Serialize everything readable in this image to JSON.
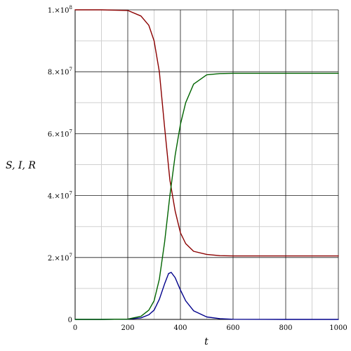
{
  "chart_data": {
    "type": "line",
    "title": "",
    "xlabel": "t",
    "ylabel": "S, I, R",
    "xlim": [
      0,
      1000
    ],
    "ylim": [
      0,
      100000000
    ],
    "x_ticks": [
      0,
      200,
      400,
      600,
      800,
      1000
    ],
    "y_ticks": [
      0,
      20000000,
      40000000,
      60000000,
      80000000,
      100000000
    ],
    "x_tick_labels": [
      "0",
      "200",
      "400",
      "600",
      "800",
      "1000"
    ],
    "y_tick_labels": [
      {
        "mantissa": "0",
        "exp": ""
      },
      {
        "mantissa": "2.×10",
        "exp": "7"
      },
      {
        "mantissa": "4.×10",
        "exp": "7"
      },
      {
        "mantissa": "6.×10",
        "exp": "7"
      },
      {
        "mantissa": "8.×10",
        "exp": "7"
      },
      {
        "mantissa": "1.×10",
        "exp": "8"
      }
    ],
    "grid": true,
    "minor_grid": true,
    "series": [
      {
        "color": "#8b0000",
        "x": [
          0,
          100,
          200,
          250,
          280,
          300,
          320,
          340,
          360,
          380,
          400,
          420,
          450,
          500,
          550,
          600,
          800,
          1000
        ],
        "y": [
          100000000,
          100000000,
          99800000,
          98000000,
          95000000,
          90000000,
          80000000,
          62000000,
          45000000,
          35000000,
          28000000,
          24500000,
          22000000,
          21000000,
          20600000,
          20500000,
          20500000,
          20500000
        ]
      },
      {
        "color": "#00008b",
        "x": [
          0,
          100,
          200,
          250,
          280,
          300,
          320,
          340,
          355,
          365,
          380,
          400,
          420,
          450,
          500,
          550,
          600,
          800,
          1000
        ],
        "y": [
          0,
          0,
          100000,
          500000,
          1500000,
          3000000,
          6500000,
          11500000,
          14800000,
          15200000,
          13500000,
          9500000,
          6000000,
          2800000,
          800000,
          250000,
          50000,
          0,
          0
        ]
      },
      {
        "color": "#006400",
        "x": [
          0,
          100,
          200,
          250,
          280,
          300,
          320,
          340,
          360,
          380,
          400,
          420,
          450,
          500,
          550,
          600,
          800,
          1000
        ],
        "y": [
          0,
          0,
          100000,
          1000000,
          3000000,
          6000000,
          13000000,
          25000000,
          40000000,
          53000000,
          63000000,
          70000000,
          76000000,
          79000000,
          79400000,
          79500000,
          79500000,
          79500000
        ]
      }
    ]
  }
}
